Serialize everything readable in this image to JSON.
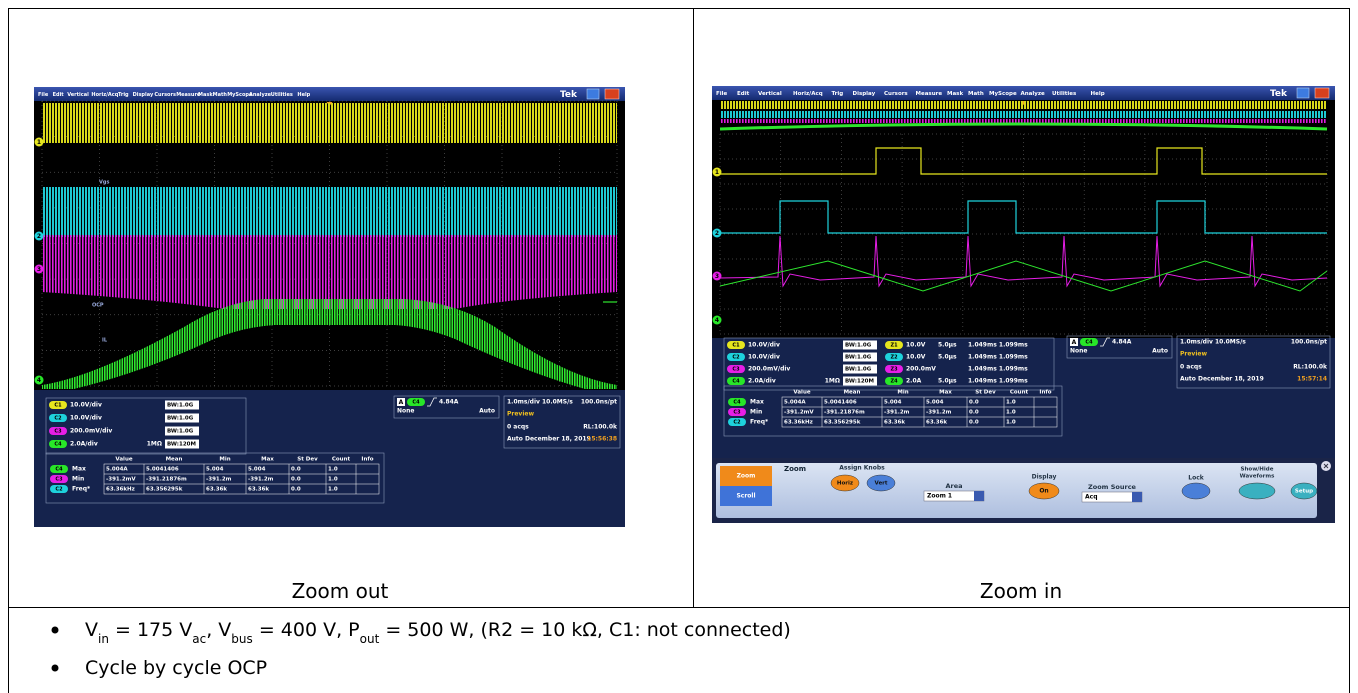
{
  "scopes": [
    {
      "menu": [
        "File",
        "Edit",
        "Vertical",
        "Horiz/Acq",
        "Trig",
        "Display",
        "Cursors",
        "Measure",
        "Mask",
        "Math",
        "MyScope",
        "Analyze",
        "Utilities",
        "Help"
      ],
      "brand": "Tek",
      "markers": [
        "1",
        "2",
        "3",
        "4"
      ],
      "trace_labels": [
        "Vgs",
        "OCP",
        "IL"
      ],
      "channels": [
        {
          "badge": "C1",
          "color": "#e6e61e",
          "scale": "10.0V/div",
          "bw": "BW:1.0G"
        },
        {
          "badge": "C2",
          "color": "#1ed2dc",
          "scale": "10.0V/div",
          "bw": "BW:1.0G"
        },
        {
          "badge": "C3",
          "color": "#e61ee6",
          "scale": "200.0mV/div",
          "bw": "BW:1.0G"
        },
        {
          "badge": "C4",
          "color": "#28e628",
          "scale": "2.0A/div",
          "impedance": "1MΩ",
          "bw": "BW:120M"
        }
      ],
      "trigger": {
        "mark": "A",
        "badge": "C4",
        "color": "#28e628",
        "level": "4.84A",
        "mode_a": "None",
        "mode_b": "Auto"
      },
      "timebase": {
        "scale": "1.0ms/div  10.0MS/s",
        "resolution": "100.0ns/pt",
        "state": "Preview",
        "acqs": "0 acqs",
        "record": "RL:100.0k",
        "date": "Auto   December 18, 2019",
        "time": "15:56:38"
      },
      "measurements": {
        "headers": [
          "Value",
          "Mean",
          "Min",
          "Max",
          "St Dev",
          "Count",
          "Info"
        ],
        "rows": [
          {
            "badge": "C4",
            "color": "#28e628",
            "label": "Max",
            "cells": [
              "5.004A",
              "5.0041406",
              "5.004",
              "5.004",
              "0.0",
              "1.0"
            ]
          },
          {
            "badge": "C3",
            "color": "#e61ee6",
            "label": "Min",
            "cells": [
              "-391.2mV",
              "-391.21876m",
              "-391.2m",
              "-391.2m",
              "0.0",
              "1.0"
            ]
          },
          {
            "badge": "C2",
            "color": "#1ed2dc",
            "label": "Freq*",
            "cells": [
              "63.36kHz",
              "63.356295k",
              "63.36k",
              "63.36k",
              "0.0",
              "1.0"
            ]
          }
        ]
      },
      "caption": "Zoom out"
    },
    {
      "menu": [
        "File",
        "Edit",
        "Vertical",
        "Horiz/Acq",
        "Trig",
        "Display",
        "Cursors",
        "Measure",
        "Mask",
        "Math",
        "MyScope",
        "Analyze",
        "Utilities",
        "Help"
      ],
      "brand": "Tek",
      "markers": [
        "1",
        "2",
        "3",
        "4"
      ],
      "channels": [
        {
          "badge": "C1",
          "color": "#e6e61e",
          "scale": "10.0V/div",
          "bw": "BW:1.0G"
        },
        {
          "badge": "C2",
          "color": "#1ed2dc",
          "scale": "10.0V/div",
          "bw": "BW:1.0G"
        },
        {
          "badge": "C3",
          "color": "#e61ee6",
          "scale": "200.0mV/div",
          "bw": "BW:1.0G"
        },
        {
          "badge": "C4",
          "color": "#28e628",
          "scale": "2.0A/div",
          "impedance": "1MΩ",
          "bw": "BW:120M"
        }
      ],
      "zooms": [
        {
          "badge": "Z1",
          "color": "#e6e61e",
          "scale": "10.0V",
          "time": "5.0µs",
          "range": "1.049ms 1.099ms"
        },
        {
          "badge": "Z2",
          "color": "#1ed2dc",
          "scale": "10.0V",
          "time": "5.0µs",
          "range": "1.049ms 1.099ms"
        },
        {
          "badge": "Z3",
          "color": "#e61ee6",
          "scale": "200.0mV",
          "range": "1.049ms 1.099ms"
        },
        {
          "badge": "Z4",
          "color": "#28e628",
          "scale": "2.0A",
          "time": "5.0µs",
          "range": "1.049ms 1.099ms"
        }
      ],
      "trigger": {
        "mark": "A",
        "badge": "C4",
        "color": "#28e628",
        "level": "4.84A",
        "mode_a": "None",
        "mode_b": "Auto"
      },
      "timebase": {
        "scale": "1.0ms/div  10.0MS/s",
        "resolution": "100.0ns/pt",
        "state": "Preview",
        "acqs": "0 acqs",
        "record": "RL:100.0k",
        "date": "Auto   December 18, 2019",
        "time": "15:57:14"
      },
      "measurements": {
        "headers": [
          "Value",
          "Mean",
          "Min",
          "Max",
          "St Dev",
          "Count",
          "Info"
        ],
        "rows": [
          {
            "badge": "C4",
            "color": "#28e628",
            "label": "Max",
            "cells": [
              "5.004A",
              "5.0041406",
              "5.004",
              "5.004",
              "0.0",
              "1.0"
            ]
          },
          {
            "badge": "C3",
            "color": "#e61ee6",
            "label": "Min",
            "cells": [
              "-391.2mV",
              "-391.21876m",
              "-391.2m",
              "-391.2m",
              "0.0",
              "1.0"
            ]
          },
          {
            "badge": "C2",
            "color": "#1ed2dc",
            "label": "Freq*",
            "cells": [
              "63.36kHz",
              "63.356295k",
              "63.36k",
              "63.36k",
              "0.0",
              "1.0"
            ]
          }
        ]
      },
      "zoom_panel": {
        "tabs": [
          "Zoom",
          "Scroll"
        ],
        "title": "Zoom",
        "assign": "Assign Knobs",
        "knobs": [
          "Horiz",
          "Vert"
        ],
        "area_label": "Area",
        "area": "Zoom 1",
        "display_label": "Display",
        "display": "On",
        "source_label": "Zoom Source",
        "source": "Acq",
        "lock": "Lock",
        "showhide": [
          "Show/Hide",
          "Waveforms"
        ],
        "setup": "Setup"
      },
      "caption": "Zoom in"
    }
  ],
  "bullets": [
    [
      "V",
      "in",
      " = 175 V",
      "ac",
      ", V",
      "bus",
      " = 400 V, P",
      "out",
      " = 500 W, (R2 = 10 kΩ, C1: not connected)"
    ],
    [
      "Cycle by cycle OCP"
    ]
  ]
}
